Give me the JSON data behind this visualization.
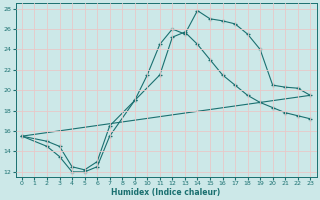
{
  "xlabel": "Humidex (Indice chaleur)",
  "xlim": [
    -0.5,
    23.5
  ],
  "ylim": [
    11.5,
    28.5
  ],
  "xticks": [
    0,
    1,
    2,
    3,
    4,
    5,
    6,
    7,
    8,
    9,
    10,
    11,
    12,
    13,
    14,
    15,
    16,
    17,
    18,
    19,
    20,
    21,
    22,
    23
  ],
  "yticks": [
    12,
    14,
    16,
    18,
    20,
    22,
    24,
    26,
    28
  ],
  "bg_color": "#cce8e8",
  "line_color": "#1a7070",
  "grid_color": "#d8eeee",
  "line1_x": [
    0,
    2,
    3,
    4,
    5,
    6,
    7,
    9,
    10,
    11,
    12,
    13,
    14,
    15,
    16,
    17,
    18,
    19,
    20,
    21,
    22,
    23
  ],
  "line1_y": [
    15.5,
    14.5,
    13.5,
    12.0,
    12.0,
    12.5,
    15.5,
    19.0,
    21.5,
    24.5,
    26.0,
    25.5,
    27.8,
    27.0,
    26.8,
    26.5,
    25.5,
    24.0,
    20.5,
    20.3,
    20.2,
    19.5
  ],
  "line2_x": [
    0,
    2,
    3,
    4,
    5,
    6,
    7,
    9,
    11,
    12,
    13,
    14,
    15,
    16,
    17,
    18,
    19,
    20,
    21,
    22,
    23
  ],
  "line2_y": [
    15.5,
    15.0,
    14.5,
    12.5,
    12.2,
    13.0,
    16.5,
    19.0,
    21.5,
    25.2,
    25.7,
    24.5,
    23.0,
    21.5,
    20.5,
    19.5,
    18.8,
    18.3,
    17.8,
    17.5,
    17.2
  ],
  "line3_x": [
    0,
    23
  ],
  "line3_y": [
    15.5,
    19.5
  ],
  "figsize": [
    3.2,
    2.0
  ],
  "dpi": 100
}
